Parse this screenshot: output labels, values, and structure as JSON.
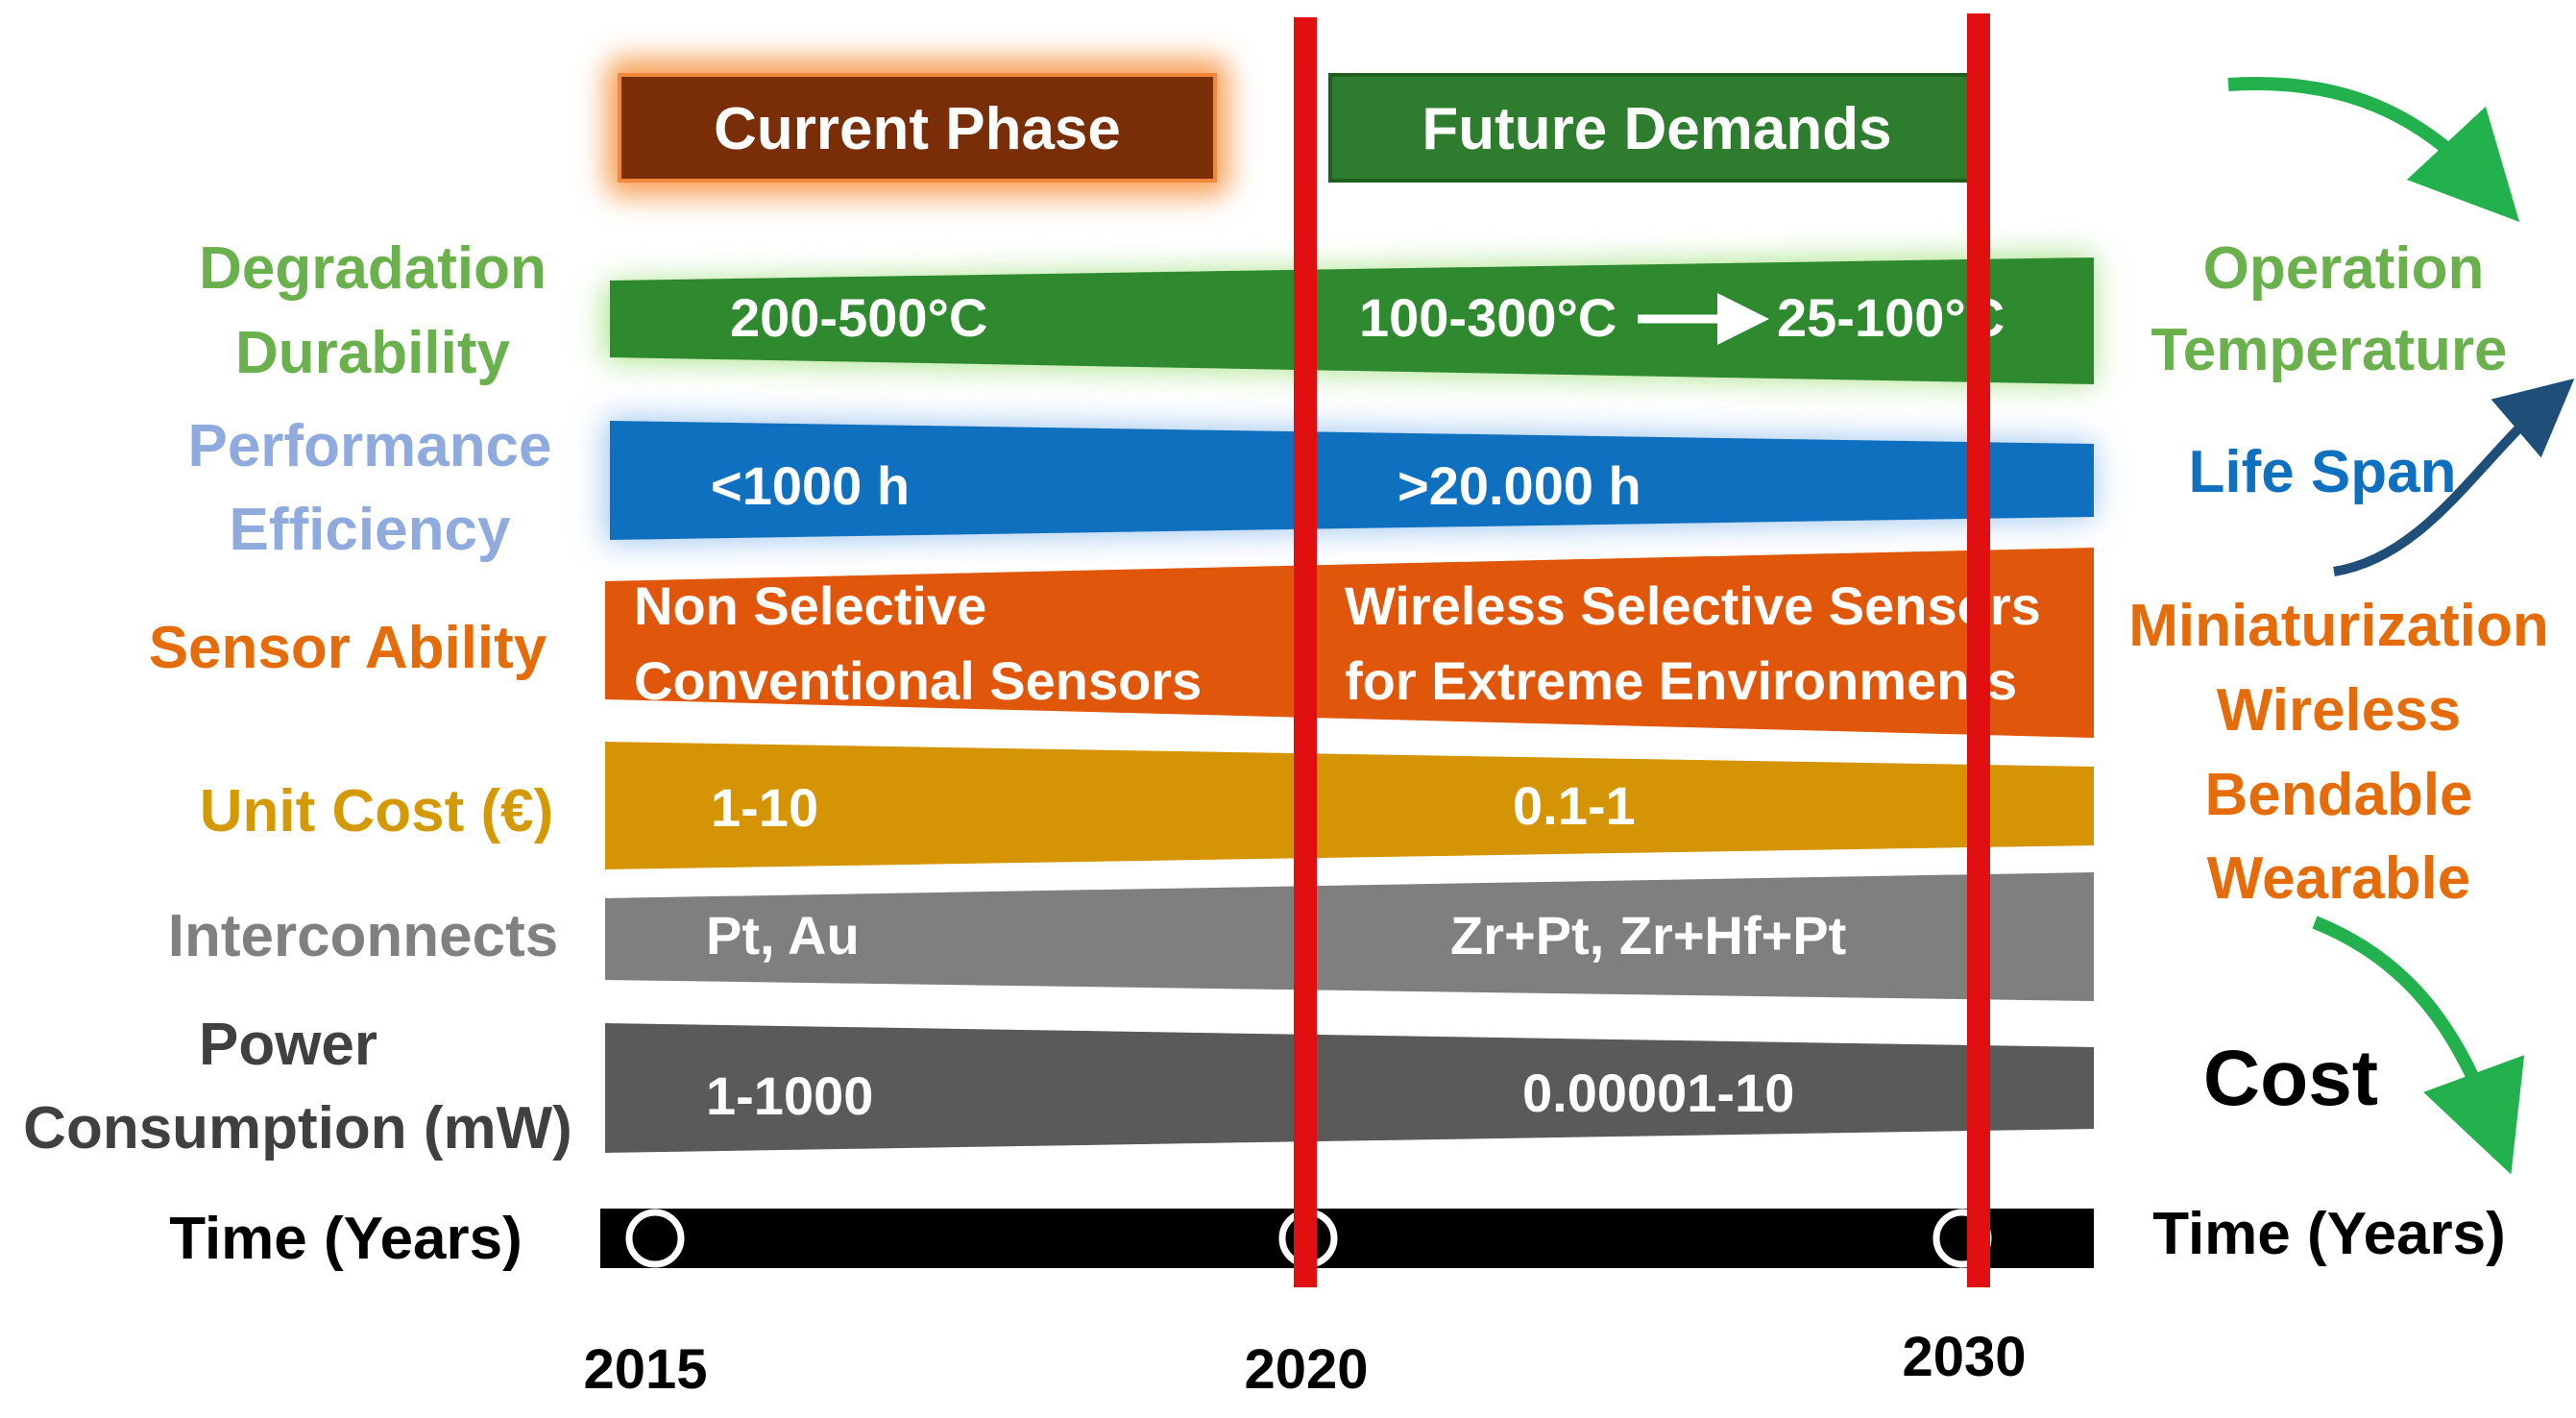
{
  "phases": {
    "current": "Current Phase",
    "future": "Future Demands"
  },
  "left_labels": {
    "degradation": "Degradation",
    "durability": "Durability",
    "performance": "Performance",
    "efficiency": "Efficiency",
    "sensor_ability": "Sensor Ability",
    "unit_cost": "Unit Cost (€)",
    "interconnects": "Interconnects",
    "power": "Power",
    "consumption": "Consumption (mW)",
    "time": "Time (Years)"
  },
  "bands": {
    "temperature": {
      "current": "200-500°C",
      "future_a": "100-300°C",
      "future_b": "25-100°C"
    },
    "life": {
      "current": "<1000 h",
      "future": ">20.000 h"
    },
    "sensor": {
      "current_1": "Non Selective",
      "current_2": "Conventional Sensors",
      "future_1": "Wireless Selective Sensors",
      "future_2": "for Extreme Environments"
    },
    "cost": {
      "current": "1-10",
      "future": "0.1-1"
    },
    "interconnects": {
      "current": "Pt, Au",
      "future": "Zr+Pt, Zr+Hf+Pt"
    },
    "power": {
      "current": "1-1000",
      "future": "0.00001-10"
    }
  },
  "right_labels": {
    "operation": "Operation",
    "temperature": "Temperature",
    "life_span": "Life Span",
    "miniaturization": "Miniaturization",
    "wireless": "Wireless",
    "bendable": "Bendable",
    "wearable": "Wearable",
    "cost": "Cost",
    "time": "Time (Years)"
  },
  "years": [
    "2015",
    "2020",
    "2030"
  ],
  "colors": {
    "current_phase": "#7a2e08",
    "current_glow": "#f7a35c",
    "future_phase": "#2e7d2e",
    "temperature_band": "#2f8a2f",
    "life_band": "#1070c0",
    "sensor_band": "#e0560a",
    "cost_band": "#d49404",
    "interconnects_band": "#7f7f7f",
    "power_band": "#5a5a5a",
    "green_label": "#6ab04c",
    "blue_label": "#8faadc",
    "orange_label": "#e46c0a",
    "gold_label": "#d49a06",
    "gray_label": "#808080",
    "dark_label": "#404040",
    "timeline_marker": "#e01010",
    "green_arrow": "#22b14c",
    "navy_arrow": "#1f4e79",
    "life_span_label": "#1070c0"
  }
}
